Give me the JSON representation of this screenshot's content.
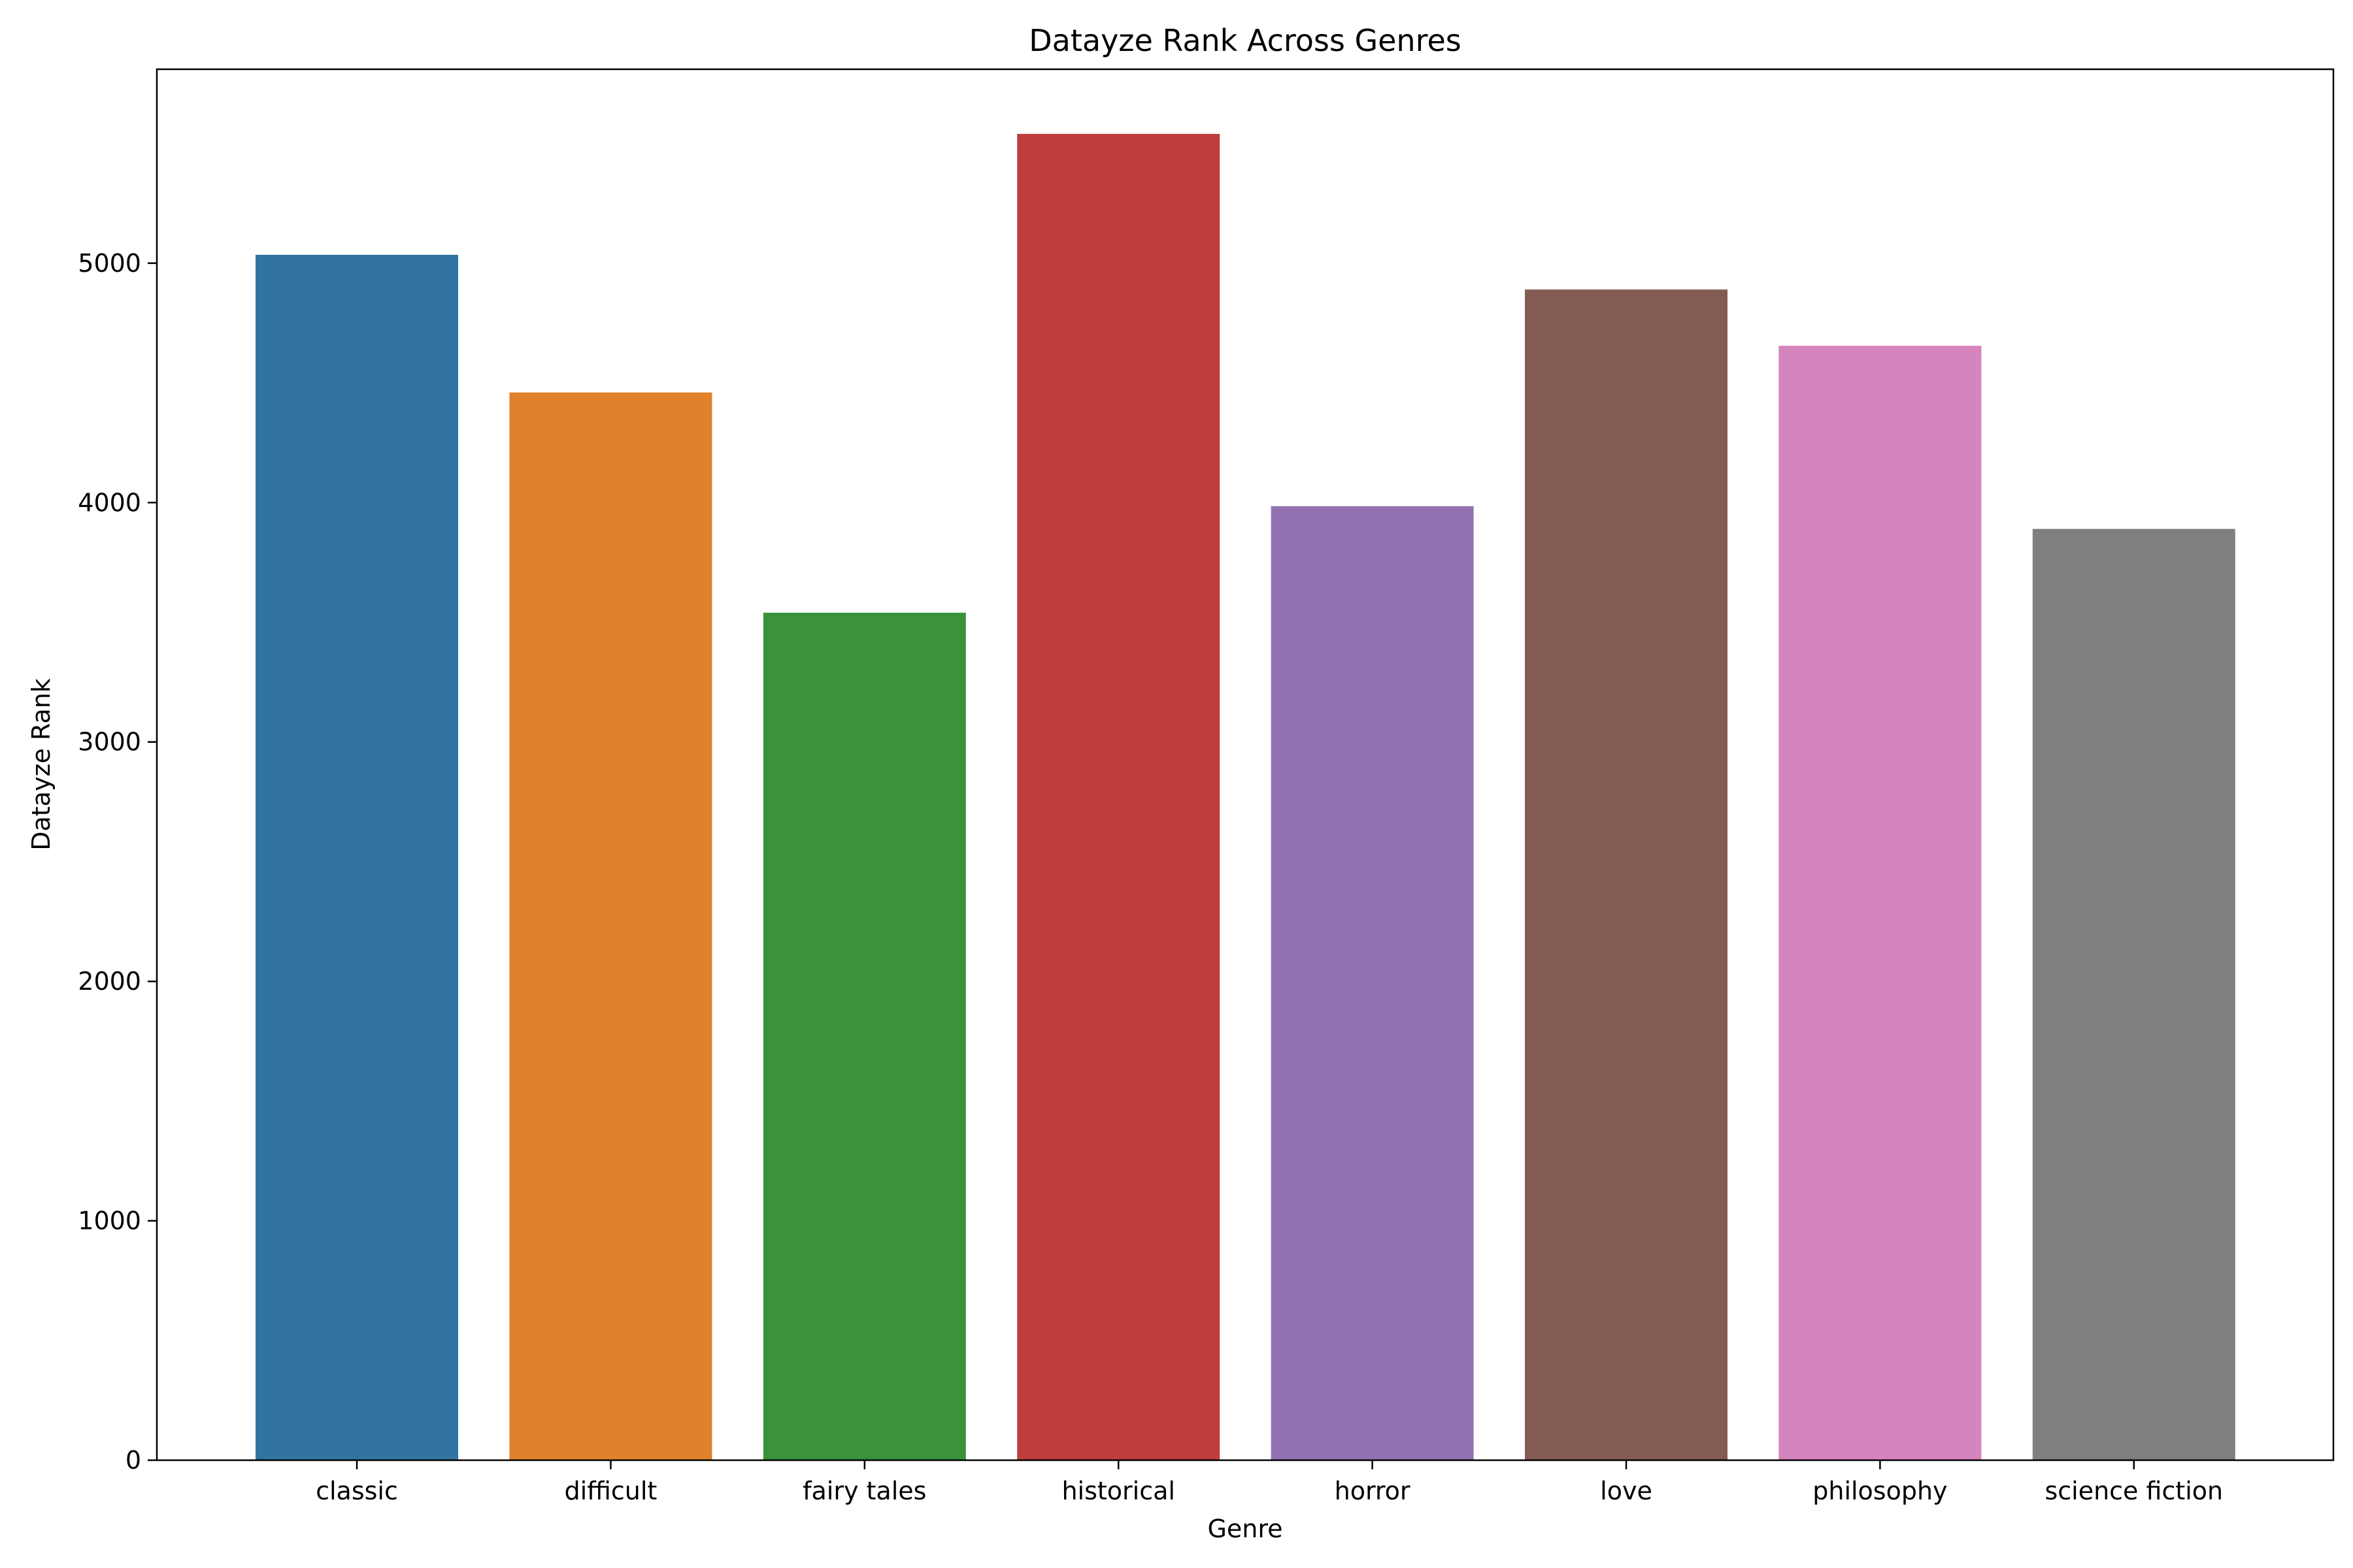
{
  "chart_data": {
    "type": "bar",
    "title": "Datayze Rank Across Genres",
    "xlabel": "Genre",
    "ylabel": "Datayze Rank",
    "categories": [
      "classic",
      "difficult",
      "fairy tales",
      "historical",
      "horror",
      "love",
      "philosophy",
      "science fiction"
    ],
    "values": [
      5035,
      4460,
      3540,
      5540,
      3985,
      4890,
      4655,
      3890
    ],
    "colors": [
      "#3274a1",
      "#e1812c",
      "#3a923a",
      "#c03d3e",
      "#9372b2",
      "#845b53",
      "#d684bd",
      "#7f7f7f"
    ],
    "ylim": [
      0,
      5810
    ],
    "yticks": [
      0,
      1000,
      2000,
      3000,
      4000,
      5000
    ],
    "ytick_labels": [
      "0",
      "1000",
      "2000",
      "3000",
      "4000",
      "5000"
    ],
    "grid": false,
    "legend": "none"
  }
}
